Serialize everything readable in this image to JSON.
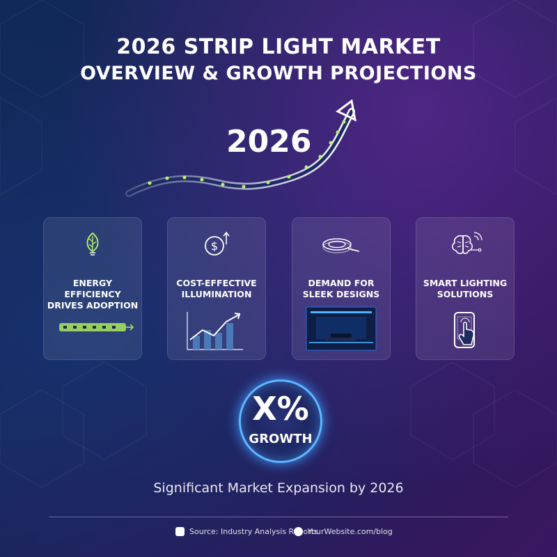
{
  "title": {
    "line1": "2026 STRIP LIGHT MARKET",
    "line2": "OVERVIEW & GROWTH PROJECTIONS"
  },
  "year_label": "2026",
  "cards": [
    {
      "label_line1": "ENERGY EFFICIENCY",
      "label_line2": "DRIVES ADOPTION",
      "icon": "leaf-bulb-icon"
    },
    {
      "label_line1": "COST-EFFECTIVE",
      "label_line2": "ILLUMINATION",
      "icon": "dollar-up-icon"
    },
    {
      "label_line1": "DEMAND FOR",
      "label_line2": "SLEEK DESIGNS",
      "icon": "led-reel-icon"
    },
    {
      "label_line1": "SMART LIGHTING",
      "label_line2": "SOLUTIONS",
      "icon": "smart-brain-icon"
    }
  ],
  "growth": {
    "value": "X%",
    "label": "GROWTH"
  },
  "subtitle": "Significant Market Expansion by 2026",
  "footer": {
    "source": "Source: Industry Analysis Reports",
    "website": "YourWebsite.com/blog"
  },
  "colors": {
    "accent_green": "#b8f56a",
    "accent_blue": "#5fb7ff",
    "card_bg": "rgba(255,255,255,0.09)"
  }
}
